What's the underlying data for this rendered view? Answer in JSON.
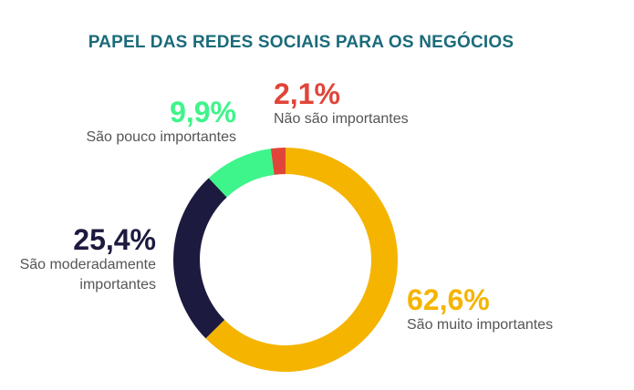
{
  "chart_data": {
    "type": "pie",
    "style": "donut",
    "title": "PAPEL DAS REDES SOCIAIS PARA OS NEGÓCIOS",
    "slices": [
      {
        "label": "São muito importantes",
        "value": 62.6,
        "value_label": "62,6%",
        "color": "#f5b400"
      },
      {
        "label": "São moderadamente importantes",
        "value": 25.4,
        "value_label": "25,4%",
        "color": "#1d1a3f"
      },
      {
        "label": "São pouco importantes",
        "value": 9.9,
        "value_label": "9,9%",
        "color": "#3df58a"
      },
      {
        "label": "Não são importantes",
        "value": 2.1,
        "value_label": "2,1%",
        "color": "#e0453a"
      }
    ],
    "legend": "none"
  }
}
